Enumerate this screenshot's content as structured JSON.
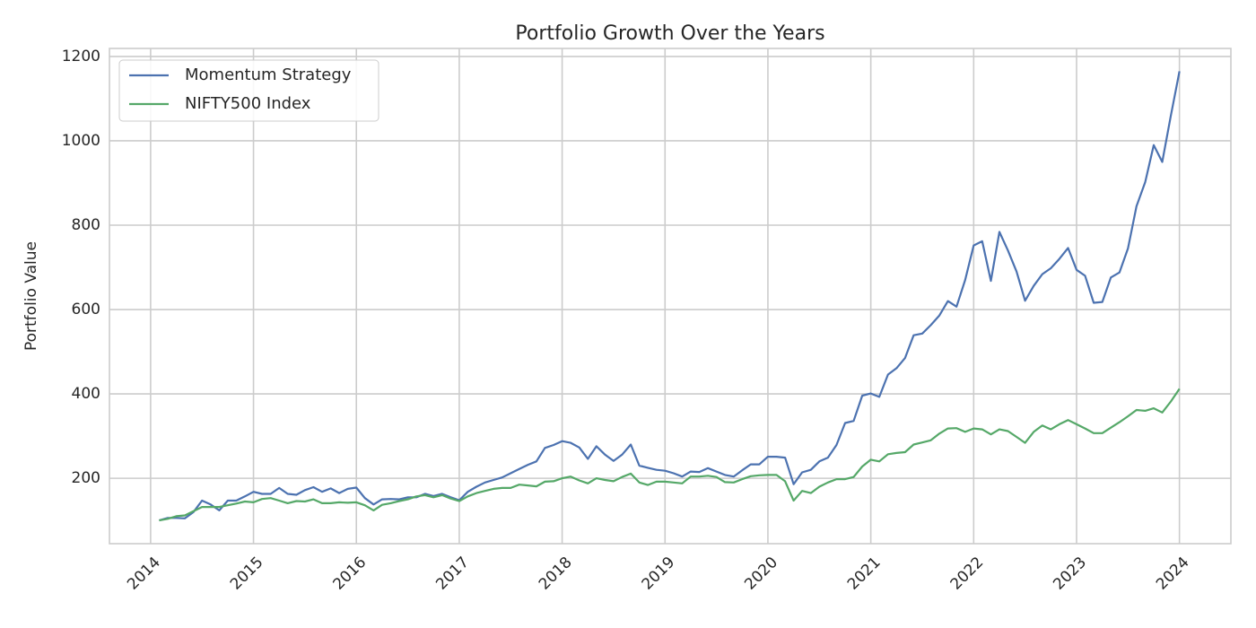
{
  "chart_data": {
    "type": "line",
    "title": "Portfolio Growth Over the Years",
    "y_label": "Portfolio Value",
    "x": [
      2014.083,
      2014.167,
      2014.25,
      2014.333,
      2014.417,
      2014.5,
      2014.583,
      2014.667,
      2014.75,
      2014.833,
      2014.917,
      2015,
      2015.083,
      2015.167,
      2015.25,
      2015.333,
      2015.417,
      2015.5,
      2015.583,
      2015.667,
      2015.75,
      2015.833,
      2015.917,
      2016,
      2016.083,
      2016.167,
      2016.25,
      2016.333,
      2016.417,
      2016.5,
      2016.583,
      2016.667,
      2016.75,
      2016.833,
      2016.917,
      2017,
      2017.083,
      2017.167,
      2017.25,
      2017.333,
      2017.417,
      2017.5,
      2017.583,
      2017.667,
      2017.75,
      2017.833,
      2017.917,
      2018,
      2018.083,
      2018.167,
      2018.25,
      2018.333,
      2018.417,
      2018.5,
      2018.583,
      2018.667,
      2018.75,
      2018.833,
      2018.917,
      2019,
      2019.083,
      2019.167,
      2019.25,
      2019.333,
      2019.417,
      2019.5,
      2019.583,
      2019.667,
      2019.75,
      2019.833,
      2019.917,
      2020,
      2020.083,
      2020.167,
      2020.25,
      2020.333,
      2020.417,
      2020.5,
      2020.583,
      2020.667,
      2020.75,
      2020.833,
      2020.917,
      2021,
      2021.083,
      2021.167,
      2021.25,
      2021.333,
      2021.417,
      2021.5,
      2021.583,
      2021.667,
      2021.75,
      2021.833,
      2021.917,
      2022,
      2022.083,
      2022.167,
      2022.25,
      2022.333,
      2022.417,
      2022.5,
      2022.583,
      2022.667,
      2022.75,
      2022.833,
      2022.917,
      2023,
      2023.083,
      2023.167,
      2023.25,
      2023.333,
      2023.417,
      2023.5,
      2023.583,
      2023.667,
      2023.75,
      2023.833,
      2023.917,
      2024
    ],
    "series": [
      {
        "name": "Momentum Strategy",
        "color": "#4c72b0",
        "values": [
          100,
          106,
          106,
          105,
          120,
          147,
          138,
          124,
          147,
          147,
          157,
          168,
          163,
          163,
          177,
          163,
          161,
          172,
          179,
          168,
          176,
          165,
          175,
          178,
          153,
          138,
          150,
          151,
          150,
          155,
          155,
          163,
          158,
          163,
          155,
          148,
          168,
          180,
          190,
          196,
          202,
          212,
          222,
          232,
          240,
          272,
          279,
          288,
          284,
          273,
          246,
          276,
          256,
          241,
          256,
          280,
          230,
          225,
          220,
          218,
          212,
          204,
          216,
          215,
          224,
          216,
          208,
          204,
          219,
          233,
          233,
          251,
          251,
          249,
          186,
          214,
          220,
          240,
          249,
          279,
          331,
          336,
          396,
          401,
          393,
          446,
          461,
          485,
          539,
          543,
          563,
          586,
          620,
          607,
          670,
          752,
          762,
          668,
          784,
          740,
          690,
          621,
          656,
          684,
          698,
          720,
          746,
          694,
          680,
          616,
          618,
          676,
          688,
          745,
          845,
          902,
          990,
          950,
          1060,
          1165
        ]
      },
      {
        "name": "NIFTY500 Index",
        "color": "#55a868",
        "values": [
          100,
          104,
          110,
          112,
          122,
          132,
          132,
          132,
          136,
          140,
          145,
          143,
          151,
          153,
          147,
          141,
          146,
          145,
          150,
          141,
          141,
          143,
          142,
          143,
          136,
          124,
          137,
          141,
          146,
          150,
          157,
          160,
          155,
          160,
          152,
          146,
          157,
          165,
          170,
          175,
          177,
          177,
          185,
          183,
          181,
          192,
          193,
          200,
          204,
          195,
          188,
          200,
          196,
          193,
          203,
          211,
          190,
          184,
          192,
          192,
          190,
          188,
          204,
          204,
          206,
          203,
          191,
          190,
          198,
          205,
          207,
          208,
          208,
          193,
          147,
          170,
          165,
          180,
          190,
          198,
          198,
          203,
          228,
          244,
          240,
          257,
          260,
          262,
          280,
          285,
          290,
          306,
          318,
          319,
          310,
          318,
          316,
          304,
          316,
          312,
          298,
          284,
          310,
          325,
          316,
          328,
          338,
          328,
          318,
          307,
          307,
          320,
          333,
          347,
          362,
          360,
          366,
          356,
          382,
          412
        ]
      }
    ],
    "xlim": [
      2013.6,
      2024.5
    ],
    "xticks": [
      2014,
      2015,
      2016,
      2017,
      2018,
      2019,
      2020,
      2021,
      2022,
      2023,
      2024
    ],
    "ylim": [
      45,
      1219
    ],
    "yticks": [
      200,
      400,
      600,
      800,
      1000,
      1200
    ],
    "grid": true,
    "legend": "upper left"
  }
}
